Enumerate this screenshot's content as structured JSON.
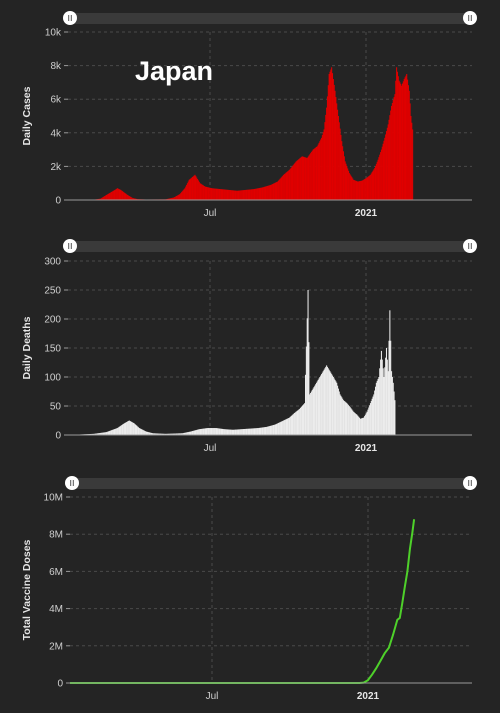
{
  "title": "Japan",
  "colors": {
    "cases": "#e00000",
    "deaths": "#ececec",
    "vaccine": "#4ed12a"
  },
  "chart_data": [
    {
      "type": "bar",
      "ylabel": "Daily Cases",
      "ylim": [
        0,
        10000
      ],
      "yticks": [
        0,
        2000,
        4000,
        6000,
        8000,
        10000
      ],
      "ytick_labels": [
        "0",
        "2k",
        "4k",
        "6k",
        "8k",
        "10k"
      ],
      "xticks": [
        "Jul",
        "2021"
      ],
      "x_range": [
        "2020-02-01",
        "2021-05-25"
      ],
      "series": [
        {
          "values": [
            [
              0,
              0
            ],
            [
              20,
              2
            ],
            [
              30,
              20
            ],
            [
              38,
              80
            ],
            [
              45,
              300
            ],
            [
              50,
              450
            ],
            [
              55,
              600
            ],
            [
              58,
              700
            ],
            [
              62,
              600
            ],
            [
              66,
              450
            ],
            [
              70,
              300
            ],
            [
              76,
              120
            ],
            [
              82,
              50
            ],
            [
              92,
              30
            ],
            [
              115,
              40
            ],
            [
              125,
              150
            ],
            [
              132,
              350
            ],
            [
              138,
              700
            ],
            [
              143,
              1200
            ],
            [
              150,
              1500
            ],
            [
              156,
              1000
            ],
            [
              162,
              800
            ],
            [
              170,
              700
            ],
            [
              180,
              650
            ],
            [
              190,
              600
            ],
            [
              200,
              550
            ],
            [
              210,
              600
            ],
            [
              220,
              650
            ],
            [
              230,
              750
            ],
            [
              240,
              900
            ],
            [
              248,
              1100
            ],
            [
              255,
              1500
            ],
            [
              262,
              1800
            ],
            [
              270,
              2300
            ],
            [
              277,
              2600
            ],
            [
              283,
              2500
            ],
            [
              290,
              3000
            ],
            [
              295,
              3200
            ],
            [
              300,
              3700
            ],
            [
              303,
              4200
            ],
            [
              306,
              5500
            ],
            [
              309,
              7500
            ],
            [
              312,
              7900
            ],
            [
              316,
              6500
            ],
            [
              320,
              5000
            ],
            [
              324,
              3500
            ],
            [
              328,
              2300
            ],
            [
              333,
              1600
            ],
            [
              338,
              1200
            ],
            [
              343,
              1100
            ],
            [
              348,
              1150
            ],
            [
              353,
              1300
            ],
            [
              358,
              1500
            ],
            [
              363,
              1900
            ],
            [
              367,
              2400
            ],
            [
              371,
              3000
            ],
            [
              375,
              3700
            ],
            [
              379,
              4500
            ],
            [
              383,
              5600
            ],
            [
              387,
              6300
            ],
            [
              389,
              7900
            ],
            [
              392,
              7100
            ],
            [
              395,
              6800
            ],
            [
              398,
              7200
            ],
            [
              401,
              7500
            ],
            [
              404,
              6500
            ],
            [
              406,
              5000
            ],
            [
              408,
              4200
            ]
          ]
        }
      ]
    },
    {
      "type": "bar",
      "ylabel": "Daily Deaths",
      "ylim": [
        0,
        300
      ],
      "yticks": [
        0,
        50,
        100,
        150,
        200,
        250,
        300
      ],
      "ytick_labels": [
        "0",
        "50",
        "100",
        "150",
        "200",
        "250",
        "300"
      ],
      "xticks": [
        "Jul",
        "2021"
      ],
      "x_range": [
        "2020-02-01",
        "2021-05-25"
      ],
      "series": [
        {
          "values": [
            [
              0,
              0
            ],
            [
              15,
              1
            ],
            [
              30,
              2
            ],
            [
              45,
              5
            ],
            [
              58,
              12
            ],
            [
              66,
              20
            ],
            [
              72,
              25
            ],
            [
              78,
              20
            ],
            [
              84,
              12
            ],
            [
              92,
              6
            ],
            [
              100,
              3
            ],
            [
              115,
              2
            ],
            [
              135,
              3
            ],
            [
              145,
              6
            ],
            [
              155,
              10
            ],
            [
              165,
              12
            ],
            [
              175,
              12
            ],
            [
              185,
              10
            ],
            [
              195,
              9
            ],
            [
              205,
              10
            ],
            [
              215,
              11
            ],
            [
              225,
              12
            ],
            [
              235,
              14
            ],
            [
              245,
              18
            ],
            [
              255,
              25
            ],
            [
              262,
              30
            ],
            [
              268,
              38
            ],
            [
              274,
              45
            ],
            [
              280,
              55
            ],
            [
              284,
              250
            ],
            [
              286,
              70
            ],
            [
              290,
              80
            ],
            [
              294,
              90
            ],
            [
              298,
              100
            ],
            [
              302,
              110
            ],
            [
              306,
              120
            ],
            [
              310,
              110
            ],
            [
              314,
              100
            ],
            [
              318,
              90
            ],
            [
              322,
              70
            ],
            [
              326,
              60
            ],
            [
              330,
              55
            ],
            [
              334,
              48
            ],
            [
              338,
              40
            ],
            [
              342,
              35
            ],
            [
              346,
              28
            ],
            [
              350,
              30
            ],
            [
              354,
              40
            ],
            [
              358,
              55
            ],
            [
              362,
              70
            ],
            [
              365,
              90
            ],
            [
              368,
              100
            ],
            [
              371,
              145
            ],
            [
              374,
              100
            ],
            [
              377,
              150
            ],
            [
              379,
              110
            ],
            [
              381,
              215
            ],
            [
              383,
              110
            ],
            [
              385,
              90
            ],
            [
              387,
              60
            ]
          ]
        }
      ]
    },
    {
      "type": "line",
      "ylabel": "Total Vaccine Doses",
      "ylim": [
        0,
        10000000
      ],
      "yticks": [
        0,
        2000000,
        4000000,
        6000000,
        8000000,
        10000000
      ],
      "ytick_labels": [
        "0",
        "2M",
        "4M",
        "6M",
        "8M",
        "10M"
      ],
      "xticks": [
        "Jul",
        "2021"
      ],
      "x_range": [
        "2020-02-01",
        "2021-05-25"
      ],
      "series": [
        {
          "values": [
            [
              0,
              0
            ],
            [
              345,
              0
            ],
            [
              350,
              20000
            ],
            [
              355,
              150000
            ],
            [
              360,
              450000
            ],
            [
              365,
              800000
            ],
            [
              370,
              1200000
            ],
            [
              375,
              1600000
            ],
            [
              380,
              1900000
            ],
            [
              385,
              2600000
            ],
            [
              390,
              3400000
            ],
            [
              393,
              3500000
            ],
            [
              396,
              4300000
            ],
            [
              399,
              5200000
            ],
            [
              402,
              6000000
            ],
            [
              405,
              7200000
            ],
            [
              408,
              8100000
            ],
            [
              410,
              8800000
            ]
          ]
        }
      ]
    }
  ]
}
